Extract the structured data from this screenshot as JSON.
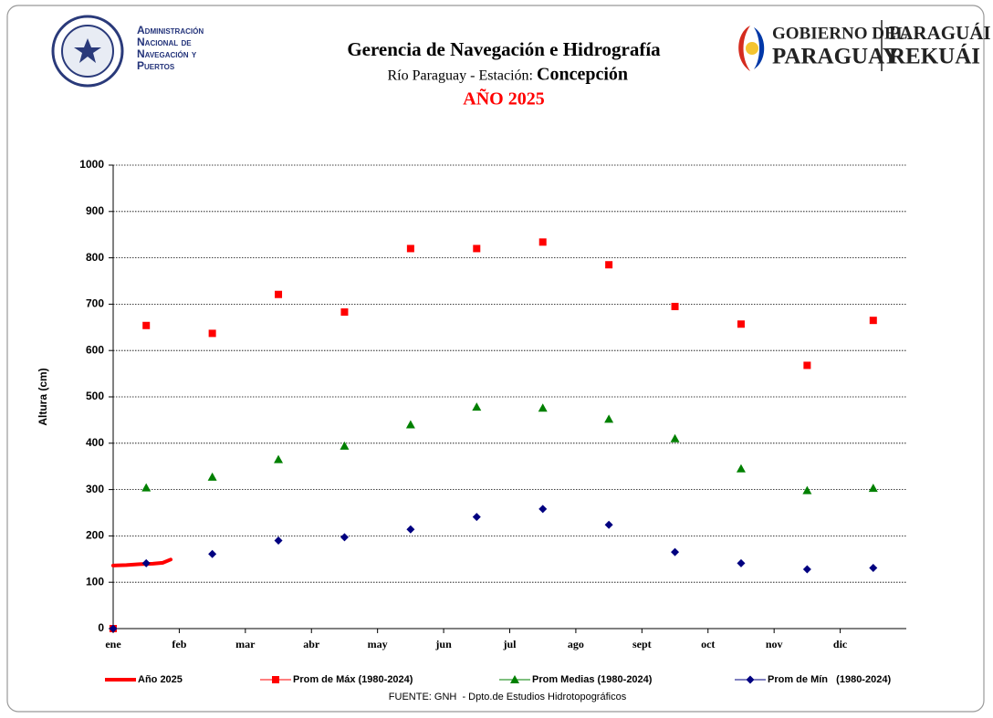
{
  "header": {
    "agency_lines": [
      "Administración",
      "Nacional de",
      "Navegación y",
      "Puertos"
    ],
    "gov_top": "GOBIERNO DEL",
    "gov_bottom": "PARAGUAY",
    "gn_top": "PARAGUÁI",
    "gn_bottom": "REKUÁI"
  },
  "chart_data": {
    "type": "scatter",
    "title": "Gerencia de Navegación e Hidrografía",
    "subtitle": "Río Paraguay - Estación:",
    "station": "Concepción",
    "year_label": "AÑO 2025",
    "y_label": "Altura (cm)",
    "source": "FUENTE: GNH  - Dpto.de Estudios Hidrotopográficos",
    "xlim": [
      0,
      12
    ],
    "xticks": [
      {
        "value": 0,
        "label": "ene"
      },
      {
        "value": 1,
        "label": "feb"
      },
      {
        "value": 2,
        "label": "mar"
      },
      {
        "value": 3,
        "label": "abr"
      },
      {
        "value": 4,
        "label": "may"
      },
      {
        "value": 5,
        "label": "jun"
      },
      {
        "value": 6,
        "label": "jul"
      },
      {
        "value": 7,
        "label": "ago"
      },
      {
        "value": 8,
        "label": "sept"
      },
      {
        "value": 9,
        "label": "oct"
      },
      {
        "value": 10,
        "label": "nov"
      },
      {
        "value": 11,
        "label": "dic"
      }
    ],
    "ylim": [
      0,
      1000
    ],
    "yticks": [
      0,
      100,
      200,
      300,
      400,
      500,
      600,
      700,
      800,
      900,
      1000
    ],
    "grid": true,
    "series": [
      {
        "name": "Año 2025",
        "color": "#ff0000",
        "marker": "line",
        "x": [
          0,
          0.2,
          0.4,
          0.6,
          0.75,
          0.87
        ],
        "values": [
          136,
          137,
          139,
          140,
          142,
          149
        ]
      },
      {
        "name": "Prom de Máx (1980-2024)",
        "color": "#ff0000",
        "marker": "square",
        "x": [
          0,
          0.5,
          1.5,
          2.5,
          3.5,
          4.5,
          5.5,
          6.5,
          7.5,
          8.5,
          9.5,
          10.5,
          11.5
        ],
        "values": [
          0,
          654,
          637,
          721,
          683,
          820,
          820,
          834,
          785,
          695,
          657,
          568,
          665
        ]
      },
      {
        "name": "Prom Medias (1980-2024)",
        "color": "#008000",
        "marker": "triangle",
        "x": [
          0.5,
          1.5,
          2.5,
          3.5,
          4.5,
          5.5,
          6.5,
          7.5,
          8.5,
          9.5,
          10.5,
          11.5
        ],
        "values": [
          304,
          327,
          365,
          394,
          440,
          478,
          476,
          452,
          410,
          345,
          298,
          303
        ]
      },
      {
        "name": "Prom de Mín   (1980-2024)",
        "color": "#000080",
        "marker": "diamond",
        "x": [
          0,
          0.5,
          1.5,
          2.5,
          3.5,
          4.5,
          5.5,
          6.5,
          7.5,
          8.5,
          9.5,
          10.5,
          11.5
        ],
        "values": [
          0,
          141,
          161,
          190,
          197,
          214,
          241,
          258,
          224,
          165,
          141,
          128,
          131
        ]
      }
    ]
  }
}
